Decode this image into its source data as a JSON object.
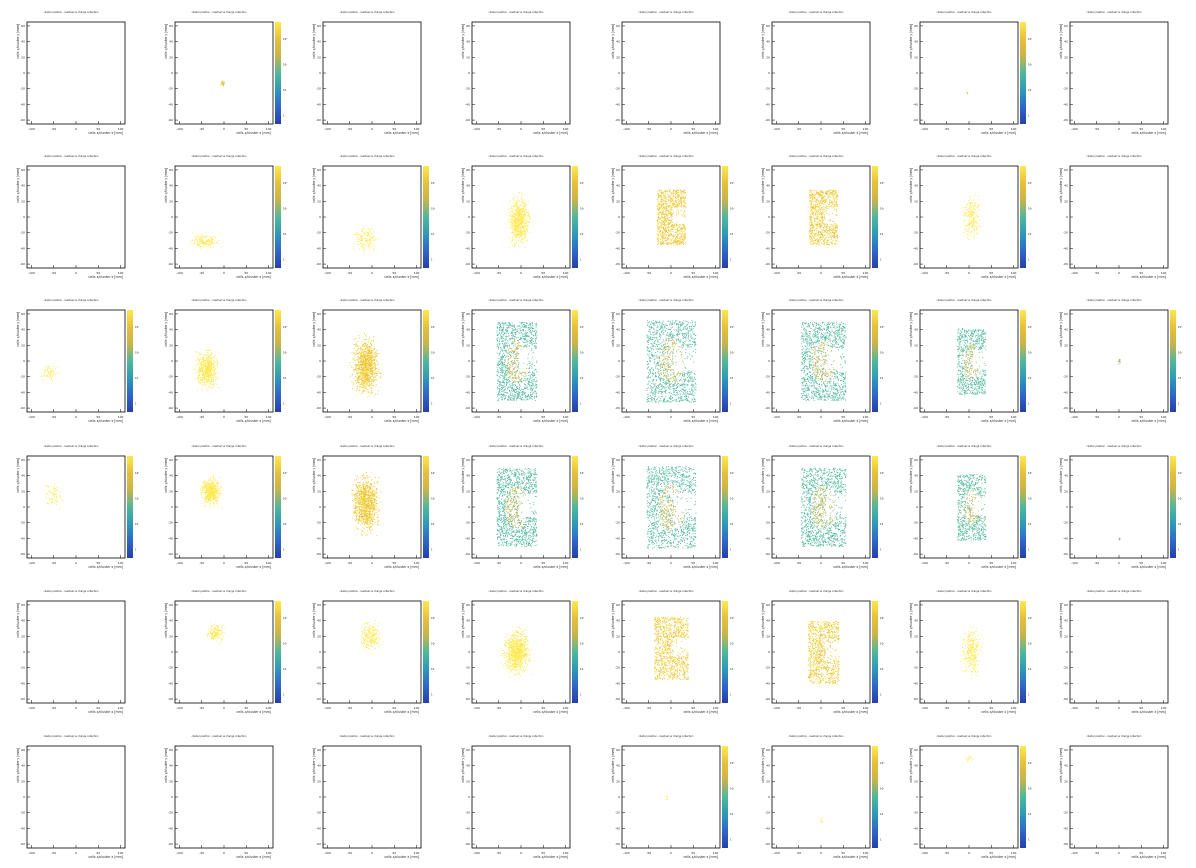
{
  "page": {
    "panel_title": "cluster position - residual vs charge collection",
    "xlabel": "cells x/cluster x [mm]",
    "ylabel": "cells y/cluster y [mm]",
    "x_ticks": [
      "-100",
      "-50",
      "0",
      "50",
      "100"
    ],
    "y_ticks": [
      "60",
      "40",
      "20",
      "0",
      "-20",
      "-40",
      "-60"
    ],
    "z_ticks": [
      "1",
      "10",
      "10²",
      "10³"
    ],
    "colormap": [
      "#ffe84a",
      "#e8c03a",
      "#c8b44a",
      "#4fb89a",
      "#2c9ab8",
      "#2f66c8",
      "#2440a8"
    ]
  },
  "chart_data": {
    "type": "heatmap",
    "description_grid": "6 rows x 8 columns of 2D occupancy histograms",
    "rows": 6,
    "cols": 8,
    "xlim": [
      -110,
      110
    ],
    "ylim": [
      -65,
      65
    ],
    "zscale": "log",
    "panels": [
      [
        {
          "d": 0
        },
        {
          "d": 0.02,
          "cz": 0,
          "cx": -4,
          "cy": -12,
          "w": 6,
          "h": 4,
          "g": false
        },
        {
          "d": 0
        },
        {
          "d": 0
        },
        {
          "d": 0
        },
        {
          "d": 0
        },
        {
          "d": 0.005,
          "cz": 0,
          "cx": -5,
          "cy": -25,
          "w": 2,
          "h": 2,
          "g": false
        },
        {
          "d": 0
        }
      ],
      [
        {
          "d": 0
        },
        {
          "d": 0.12,
          "cz": 1,
          "cx": -45,
          "cy": -30,
          "w": 40,
          "h": 12,
          "g": false
        },
        {
          "d": 0.1,
          "cz": 1,
          "cx": -15,
          "cy": -28,
          "w": 35,
          "h": 20,
          "g": false
        },
        {
          "d": 0.5,
          "cz": 1,
          "cx": -5,
          "cy": -5,
          "w": 30,
          "h": 40,
          "g": false
        },
        {
          "d": 0.85,
          "cz": 1,
          "cx": 0,
          "cy": 0,
          "w": 32,
          "h": 35,
          "g": "c"
        },
        {
          "d": 0.75,
          "cz": 1,
          "cx": 5,
          "cy": 0,
          "w": 32,
          "h": 35,
          "g": "c"
        },
        {
          "d": 0.15,
          "cz": 1,
          "cx": 5,
          "cy": 0,
          "w": 25,
          "h": 38,
          "g": false
        },
        {
          "d": 0
        }
      ],
      [
        {
          "d": 0.05,
          "cz": 1,
          "cx": -60,
          "cy": -15,
          "w": 25,
          "h": 12,
          "g": false
        },
        {
          "d": 0.4,
          "cz": 1,
          "cx": -40,
          "cy": -10,
          "w": 32,
          "h": 30,
          "g": false
        },
        {
          "d": 0.8,
          "cz": 1,
          "cx": -15,
          "cy": -5,
          "w": 38,
          "h": 45,
          "g": false
        },
        {
          "d": 1,
          "cz": 2,
          "cx": -10,
          "cy": 0,
          "w": 45,
          "h": 50,
          "g": "c"
        },
        {
          "d": 1,
          "cz": 2,
          "cx": 0,
          "cy": 0,
          "w": 55,
          "h": 52,
          "g": "c"
        },
        {
          "d": 1,
          "cz": 2,
          "cx": 5,
          "cy": 0,
          "w": 50,
          "h": 50,
          "g": "c"
        },
        {
          "d": 0.6,
          "cz": 2,
          "cx": 5,
          "cy": 0,
          "w": 32,
          "h": 42,
          "g": "c"
        },
        {
          "d": 0.01,
          "cz": 2,
          "cx": 0,
          "cy": 0,
          "w": 5,
          "h": 5,
          "g": false
        }
      ],
      [
        {
          "d": 0.05,
          "cz": 1,
          "cx": -50,
          "cy": 15,
          "w": 30,
          "h": 20,
          "g": false
        },
        {
          "d": 0.4,
          "cz": 1,
          "cx": -30,
          "cy": 20,
          "w": 28,
          "h": 22,
          "g": false
        },
        {
          "d": 0.8,
          "cz": 1,
          "cx": -15,
          "cy": 5,
          "w": 38,
          "h": 45,
          "g": false
        },
        {
          "d": 1,
          "cz": 2,
          "cx": -10,
          "cy": 0,
          "w": 45,
          "h": 50,
          "g": "c"
        },
        {
          "d": 1,
          "cz": 2,
          "cx": 0,
          "cy": 0,
          "w": 55,
          "h": 52,
          "g": "c"
        },
        {
          "d": 1,
          "cz": 2,
          "cx": 5,
          "cy": 0,
          "w": 50,
          "h": 50,
          "g": "c"
        },
        {
          "d": 0.6,
          "cz": 2,
          "cx": 5,
          "cy": 0,
          "w": 32,
          "h": 42,
          "g": "c"
        },
        {
          "d": 0.005,
          "cz": 2,
          "cx": 0,
          "cy": -40,
          "w": 3,
          "h": 3,
          "g": false
        }
      ],
      [
        {
          "d": 0
        },
        {
          "d": 0.1,
          "cz": 1,
          "cx": -20,
          "cy": 25,
          "w": 25,
          "h": 15,
          "g": false
        },
        {
          "d": 0.15,
          "cz": 1,
          "cx": -5,
          "cy": 20,
          "w": 30,
          "h": 25,
          "g": false
        },
        {
          "d": 0.6,
          "cz": 1,
          "cx": -10,
          "cy": 0,
          "w": 38,
          "h": 38,
          "g": false
        },
        {
          "d": 0.85,
          "cz": 1,
          "cx": 0,
          "cy": 5,
          "w": 38,
          "h": 40,
          "g": "c"
        },
        {
          "d": 0.8,
          "cz": 1,
          "cx": 5,
          "cy": 0,
          "w": 35,
          "h": 40,
          "g": "c"
        },
        {
          "d": 0.2,
          "cz": 1,
          "cx": 5,
          "cy": 0,
          "w": 28,
          "h": 38,
          "g": false
        },
        {
          "d": 0
        }
      ],
      [
        {
          "d": 0
        },
        {
          "d": 0
        },
        {
          "d": 0
        },
        {
          "d": 0
        },
        {
          "d": 0.005,
          "cz": 1,
          "cx": -10,
          "cy": 0,
          "w": 5,
          "h": 5,
          "g": false
        },
        {
          "d": 0.005,
          "cz": 1,
          "cx": 0,
          "cy": -30,
          "w": 5,
          "h": 5,
          "g": false
        },
        {
          "d": 0.01,
          "cz": 1,
          "cx": 0,
          "cy": 50,
          "w": 10,
          "h": 5,
          "g": false
        },
        {
          "d": 0
        }
      ]
    ]
  }
}
